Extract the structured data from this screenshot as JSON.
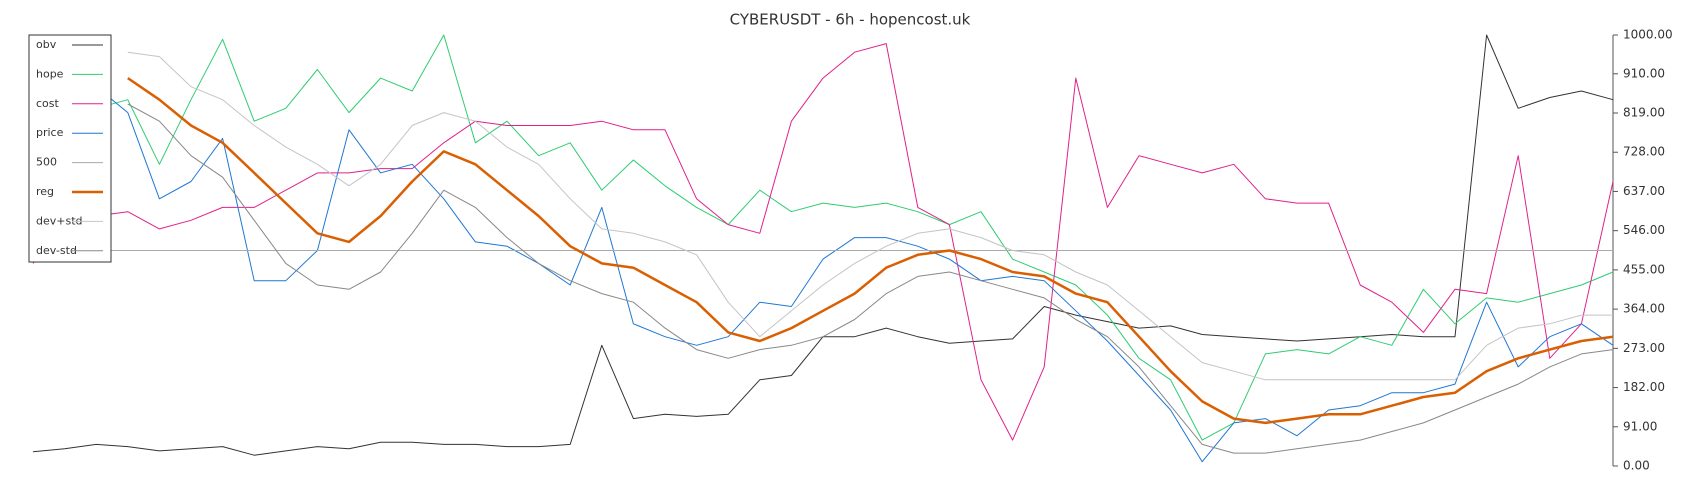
{
  "chart_data": {
    "type": "line",
    "title": "CYBERUSDT - 6h - hopencost.uk",
    "ylim": [
      0,
      1000
    ],
    "yticks": [
      {
        "value": 0,
        "label": "0.00"
      },
      {
        "value": 91,
        "label": "91.00"
      },
      {
        "value": 182,
        "label": "182.00"
      },
      {
        "value": 273,
        "label": "273.00"
      },
      {
        "value": 364,
        "label": "364.00"
      },
      {
        "value": 455,
        "label": "455.00"
      },
      {
        "value": 546,
        "label": "546.00"
      },
      {
        "value": 637,
        "label": "637.00"
      },
      {
        "value": 728,
        "label": "728.00"
      },
      {
        "value": 819,
        "label": "819.00"
      },
      {
        "value": 910,
        "label": "910.00"
      },
      {
        "value": 1000,
        "label": "1000.00"
      }
    ],
    "legend": "upper left",
    "series": [
      {
        "name": "obv",
        "color": "#333333",
        "width": 1,
        "values": [
          33,
          40,
          50,
          45,
          35,
          40,
          45,
          25,
          35,
          45,
          40,
          55,
          55,
          50,
          50,
          45,
          45,
          50,
          280,
          110,
          120,
          115,
          120,
          200,
          210,
          300,
          300,
          320,
          300,
          285,
          290,
          295,
          370,
          350,
          335,
          320,
          325,
          305,
          300,
          295,
          290,
          295,
          300,
          305,
          300,
          300,
          1000,
          830,
          855,
          870,
          850
        ]
      },
      {
        "name": "hope",
        "color": "#2ecc71",
        "width": 1,
        "values": [
          null,
          null,
          830,
          850,
          700,
          850,
          990,
          800,
          830,
          920,
          820,
          900,
          870,
          1000,
          750,
          800,
          720,
          750,
          640,
          710,
          650,
          600,
          560,
          640,
          590,
          610,
          600,
          610,
          590,
          560,
          590,
          480,
          450,
          420,
          350,
          250,
          200,
          60,
          100,
          260,
          270,
          260,
          300,
          280,
          410,
          330,
          390,
          380,
          400,
          420,
          450
        ]
      },
      {
        "name": "cost",
        "color": "#e0218a",
        "width": 1,
        "values": [
          470,
          560,
          580,
          590,
          550,
          570,
          600,
          600,
          640,
          680,
          680,
          690,
          690,
          750,
          800,
          790,
          790,
          790,
          800,
          780,
          780,
          620,
          560,
          540,
          800,
          900,
          960,
          980,
          600,
          560,
          200,
          60,
          230,
          900,
          600,
          720,
          700,
          680,
          700,
          620,
          610,
          610,
          420,
          380,
          310,
          410,
          400,
          720,
          250,
          330,
          660
        ]
      },
      {
        "name": "price",
        "color": "#1f77d4",
        "width": 1,
        "values": [
          null,
          null,
          880,
          820,
          620,
          660,
          760,
          430,
          430,
          500,
          780,
          680,
          700,
          620,
          520,
          510,
          470,
          420,
          600,
          330,
          300,
          280,
          300,
          380,
          370,
          480,
          530,
          530,
          510,
          480,
          430,
          440,
          430,
          360,
          290,
          210,
          130,
          10,
          100,
          110,
          70,
          130,
          140,
          170,
          170,
          190,
          380,
          230,
          300,
          330,
          280
        ]
      },
      {
        "name": "500",
        "color": "#aaaaaa",
        "width": 1,
        "values": [
          500,
          500,
          500,
          500,
          500,
          500,
          500,
          500,
          500,
          500,
          500,
          500,
          500,
          500,
          500,
          500,
          500,
          500,
          500,
          500,
          500,
          500,
          500,
          500,
          500,
          500,
          500,
          500,
          500,
          500,
          500,
          500,
          500,
          500,
          500,
          500,
          500,
          500,
          500,
          500,
          500,
          500,
          500,
          500,
          500,
          500,
          500,
          500,
          500,
          500,
          500
        ]
      },
      {
        "name": "reg",
        "color": "#d95f02",
        "width": 2.5,
        "values": [
          null,
          null,
          null,
          900,
          850,
          790,
          750,
          680,
          610,
          540,
          520,
          580,
          660,
          730,
          700,
          640,
          580,
          510,
          470,
          460,
          420,
          380,
          310,
          290,
          320,
          360,
          400,
          460,
          490,
          500,
          480,
          450,
          440,
          400,
          380,
          300,
          220,
          150,
          110,
          100,
          110,
          120,
          120,
          140,
          160,
          170,
          220,
          250,
          270,
          290,
          300
        ]
      },
      {
        "name": "dev+std",
        "color": "#c4c4c4",
        "width": 1,
        "values": [
          null,
          null,
          null,
          960,
          950,
          880,
          850,
          790,
          740,
          700,
          650,
          700,
          790,
          820,
          800,
          740,
          700,
          620,
          550,
          540,
          520,
          490,
          380,
          300,
          360,
          420,
          470,
          510,
          540,
          550,
          530,
          500,
          490,
          450,
          420,
          360,
          300,
          240,
          220,
          200,
          200,
          200,
          200,
          200,
          200,
          200,
          280,
          320,
          330,
          350,
          350
        ]
      },
      {
        "name": "dev-std",
        "color": "#888888",
        "width": 1,
        "values": [
          null,
          null,
          null,
          840,
          800,
          720,
          670,
          570,
          470,
          420,
          410,
          450,
          540,
          640,
          600,
          530,
          470,
          430,
          400,
          380,
          320,
          270,
          250,
          270,
          280,
          300,
          340,
          400,
          440,
          450,
          430,
          410,
          390,
          340,
          300,
          230,
          140,
          50,
          30,
          30,
          40,
          50,
          60,
          80,
          100,
          130,
          160,
          190,
          230,
          260,
          270
        ]
      }
    ]
  }
}
